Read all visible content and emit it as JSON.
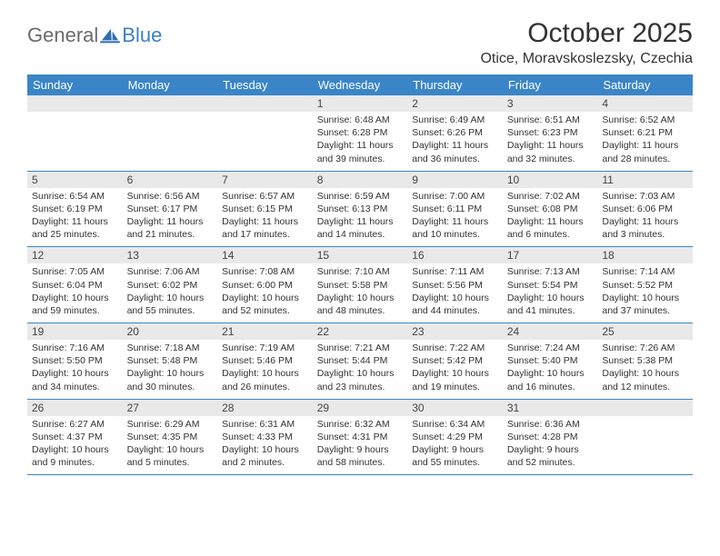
{
  "logo": {
    "general": "General",
    "blue": "Blue"
  },
  "title": "October 2025",
  "location": "Otice, Moravskoslezsky, Czechia",
  "colors": {
    "header_bg": "#3a85c7",
    "header_text": "#ffffff",
    "daynum_bg": "#e9e9e9",
    "row_border": "#3a85c7",
    "logo_gray": "#6b6b6b",
    "logo_blue": "#3a7fc4"
  },
  "weekdays": [
    "Sunday",
    "Monday",
    "Tuesday",
    "Wednesday",
    "Thursday",
    "Friday",
    "Saturday"
  ],
  "weeks": [
    [
      null,
      null,
      null,
      {
        "n": "1",
        "sr": "6:48 AM",
        "ss": "6:28 PM",
        "dl": "11 hours and 39 minutes."
      },
      {
        "n": "2",
        "sr": "6:49 AM",
        "ss": "6:26 PM",
        "dl": "11 hours and 36 minutes."
      },
      {
        "n": "3",
        "sr": "6:51 AM",
        "ss": "6:23 PM",
        "dl": "11 hours and 32 minutes."
      },
      {
        "n": "4",
        "sr": "6:52 AM",
        "ss": "6:21 PM",
        "dl": "11 hours and 28 minutes."
      }
    ],
    [
      {
        "n": "5",
        "sr": "6:54 AM",
        "ss": "6:19 PM",
        "dl": "11 hours and 25 minutes."
      },
      {
        "n": "6",
        "sr": "6:56 AM",
        "ss": "6:17 PM",
        "dl": "11 hours and 21 minutes."
      },
      {
        "n": "7",
        "sr": "6:57 AM",
        "ss": "6:15 PM",
        "dl": "11 hours and 17 minutes."
      },
      {
        "n": "8",
        "sr": "6:59 AM",
        "ss": "6:13 PM",
        "dl": "11 hours and 14 minutes."
      },
      {
        "n": "9",
        "sr": "7:00 AM",
        "ss": "6:11 PM",
        "dl": "11 hours and 10 minutes."
      },
      {
        "n": "10",
        "sr": "7:02 AM",
        "ss": "6:08 PM",
        "dl": "11 hours and 6 minutes."
      },
      {
        "n": "11",
        "sr": "7:03 AM",
        "ss": "6:06 PM",
        "dl": "11 hours and 3 minutes."
      }
    ],
    [
      {
        "n": "12",
        "sr": "7:05 AM",
        "ss": "6:04 PM",
        "dl": "10 hours and 59 minutes."
      },
      {
        "n": "13",
        "sr": "7:06 AM",
        "ss": "6:02 PM",
        "dl": "10 hours and 55 minutes."
      },
      {
        "n": "14",
        "sr": "7:08 AM",
        "ss": "6:00 PM",
        "dl": "10 hours and 52 minutes."
      },
      {
        "n": "15",
        "sr": "7:10 AM",
        "ss": "5:58 PM",
        "dl": "10 hours and 48 minutes."
      },
      {
        "n": "16",
        "sr": "7:11 AM",
        "ss": "5:56 PM",
        "dl": "10 hours and 44 minutes."
      },
      {
        "n": "17",
        "sr": "7:13 AM",
        "ss": "5:54 PM",
        "dl": "10 hours and 41 minutes."
      },
      {
        "n": "18",
        "sr": "7:14 AM",
        "ss": "5:52 PM",
        "dl": "10 hours and 37 minutes."
      }
    ],
    [
      {
        "n": "19",
        "sr": "7:16 AM",
        "ss": "5:50 PM",
        "dl": "10 hours and 34 minutes."
      },
      {
        "n": "20",
        "sr": "7:18 AM",
        "ss": "5:48 PM",
        "dl": "10 hours and 30 minutes."
      },
      {
        "n": "21",
        "sr": "7:19 AM",
        "ss": "5:46 PM",
        "dl": "10 hours and 26 minutes."
      },
      {
        "n": "22",
        "sr": "7:21 AM",
        "ss": "5:44 PM",
        "dl": "10 hours and 23 minutes."
      },
      {
        "n": "23",
        "sr": "7:22 AM",
        "ss": "5:42 PM",
        "dl": "10 hours and 19 minutes."
      },
      {
        "n": "24",
        "sr": "7:24 AM",
        "ss": "5:40 PM",
        "dl": "10 hours and 16 minutes."
      },
      {
        "n": "25",
        "sr": "7:26 AM",
        "ss": "5:38 PM",
        "dl": "10 hours and 12 minutes."
      }
    ],
    [
      {
        "n": "26",
        "sr": "6:27 AM",
        "ss": "4:37 PM",
        "dl": "10 hours and 9 minutes."
      },
      {
        "n": "27",
        "sr": "6:29 AM",
        "ss": "4:35 PM",
        "dl": "10 hours and 5 minutes."
      },
      {
        "n": "28",
        "sr": "6:31 AM",
        "ss": "4:33 PM",
        "dl": "10 hours and 2 minutes."
      },
      {
        "n": "29",
        "sr": "6:32 AM",
        "ss": "4:31 PM",
        "dl": "9 hours and 58 minutes."
      },
      {
        "n": "30",
        "sr": "6:34 AM",
        "ss": "4:29 PM",
        "dl": "9 hours and 55 minutes."
      },
      {
        "n": "31",
        "sr": "6:36 AM",
        "ss": "4:28 PM",
        "dl": "9 hours and 52 minutes."
      },
      null
    ]
  ]
}
